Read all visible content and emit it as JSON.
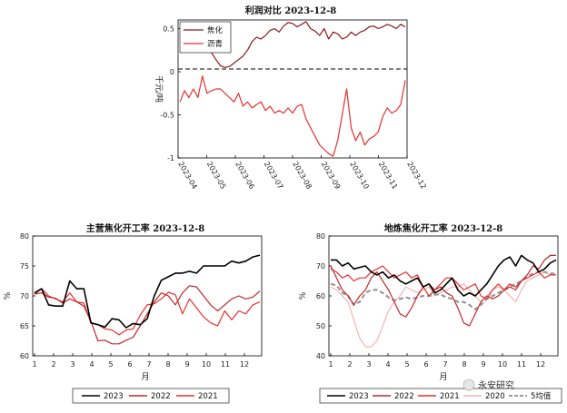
{
  "chart_data": [
    {
      "id": "profit",
      "type": "line",
      "title": "利润对比 2023-12-8",
      "ylabel": "千元/吨",
      "ylim": [
        -1,
        0.6
      ],
      "yticks": [
        "0.5",
        "0",
        "-0.5",
        "-1"
      ],
      "xticks": [
        "2023-04",
        "2023-05",
        "2023-06",
        "2023-07",
        "2023-08",
        "2023-09",
        "2023-10",
        "2023-11",
        "2023-12"
      ],
      "legend_position": "top-left",
      "series": [
        {
          "name": "焦化",
          "color": "#8b1a1a",
          "values": [
            0.4,
            0.55,
            0.42,
            0.5,
            0.38,
            0.45,
            0.3,
            0.22,
            0.14,
            0.07,
            0.05,
            0.06,
            0.1,
            0.14,
            0.18,
            0.25,
            0.35,
            0.4,
            0.38,
            0.42,
            0.48,
            0.5,
            0.46,
            0.53,
            0.57,
            0.56,
            0.52,
            0.55,
            0.58,
            0.5,
            0.47,
            0.42,
            0.5,
            0.38,
            0.46,
            0.44,
            0.38,
            0.4,
            0.46,
            0.42,
            0.46,
            0.48,
            0.52,
            0.53,
            0.5,
            0.52,
            0.55,
            0.53,
            0.5,
            0.55,
            0.52
          ]
        },
        {
          "name": "沥青",
          "color": "#e8302d",
          "values": [
            -0.35,
            -0.22,
            -0.3,
            -0.2,
            -0.3,
            -0.05,
            -0.25,
            -0.22,
            -0.2,
            -0.2,
            -0.25,
            -0.3,
            -0.35,
            -0.25,
            -0.4,
            -0.35,
            -0.42,
            -0.38,
            -0.35,
            -0.45,
            -0.4,
            -0.48,
            -0.45,
            -0.48,
            -0.42,
            -0.48,
            -0.4,
            -0.38,
            -0.55,
            -0.65,
            -0.75,
            -0.85,
            -0.9,
            -0.95,
            -0.98,
            -0.8,
            -0.5,
            -0.2,
            -0.65,
            -0.8,
            -0.7,
            -0.85,
            -0.78,
            -0.75,
            -0.7,
            -0.52,
            -0.42,
            -0.48,
            -0.45,
            -0.38,
            -0.1
          ]
        }
      ]
    },
    {
      "id": "coking",
      "type": "line",
      "title": "主营焦化开工率 2023-12-8",
      "xlabel": "月",
      "ylabel": "%",
      "ylim": [
        60,
        80
      ],
      "yticks": [
        "80",
        "75",
        "70",
        "65",
        "60"
      ],
      "xticks": [
        "1",
        "2",
        "3",
        "4",
        "5",
        "6",
        "7",
        "8",
        "9",
        "10",
        "11",
        "12"
      ],
      "legend_position": "bottom",
      "series": [
        {
          "name": "2023",
          "color": "#000000",
          "dash": "",
          "values": [
            70.5,
            71.2,
            68.5,
            68.3,
            68.3,
            72.5,
            71.2,
            71.2,
            65.5,
            65.2,
            64.8,
            66.2,
            66.0,
            64.7,
            65.4,
            65.2,
            66.2,
            70.0,
            72.6,
            73.2,
            73.8,
            73.8,
            74.1,
            73.8,
            75.0,
            75.0,
            75.0,
            75.0,
            75.8,
            75.5,
            75.8,
            76.5,
            76.8
          ]
        },
        {
          "name": "2022",
          "color": "#c0282b",
          "dash": "",
          "values": [
            70.3,
            70.5,
            69.8,
            69.6,
            68.8,
            69.5,
            69.0,
            68.3,
            65.8,
            62.5,
            62.6,
            62.0,
            62.0,
            62.6,
            63.1,
            65.0,
            67.0,
            69.0,
            70.5,
            70.0,
            68.5,
            70.5,
            71.7,
            71.5,
            70.0,
            68.5,
            67.5,
            68.5,
            69.5,
            70.0,
            69.5,
            69.8,
            70.8
          ]
        },
        {
          "name": "2021",
          "color": "#e8302d",
          "dash": "",
          "values": [
            70.3,
            71.2,
            70.0,
            69.5,
            69.0,
            70.5,
            69.0,
            68.8,
            65.5,
            65.2,
            64.5,
            64.3,
            63.5,
            64.3,
            64.5,
            66.8,
            68.5,
            68.7,
            69.5,
            70.6,
            70.2,
            67.0,
            69.5,
            68.0,
            66.5,
            65.5,
            65.0,
            67.5,
            66.0,
            67.5,
            67.0,
            68.5,
            69.0
          ]
        }
      ]
    },
    {
      "id": "local",
      "type": "line",
      "title": "地炼焦化开工率 2023-12-8",
      "xlabel": "月",
      "ylabel": "%",
      "ylim": [
        40,
        80
      ],
      "yticks": [
        "80",
        "70",
        "60",
        "50",
        "40"
      ],
      "xticks": [
        "1",
        "2",
        "3",
        "4",
        "5",
        "6",
        "7",
        "8",
        "9",
        "10",
        "11",
        "12"
      ],
      "legend_position": "bottom",
      "series": [
        {
          "name": "2023",
          "color": "#000000",
          "dash": "",
          "values": [
            72,
            72,
            70,
            71,
            69,
            69.5,
            70,
            68,
            67,
            68,
            66,
            67,
            65,
            64,
            65,
            66,
            63,
            64,
            61,
            62,
            64,
            66,
            62,
            60,
            61,
            60,
            62,
            64,
            67,
            70,
            72,
            73,
            70,
            73.5,
            72,
            71,
            68,
            69,
            71,
            72
          ]
        },
        {
          "name": "2022",
          "color": "#c0282b",
          "dash": "",
          "values": [
            70,
            66,
            62,
            60,
            57,
            60,
            62,
            66,
            68,
            65,
            62,
            58,
            54,
            53,
            56,
            60,
            63,
            64,
            62,
            63,
            61,
            60,
            56,
            51,
            50,
            54,
            58,
            60,
            59,
            60,
            62,
            63,
            62,
            65,
            67,
            70,
            69,
            72,
            73.5,
            73.5
          ]
        },
        {
          "name": "2021",
          "color": "#e8302d",
          "dash": "",
          "values": [
            69,
            68,
            66,
            67,
            65,
            66,
            66,
            68,
            69,
            70,
            68,
            66,
            67,
            68,
            66,
            67,
            63,
            60,
            62,
            64,
            66,
            66,
            64,
            62,
            63,
            64,
            60,
            59,
            62,
            64,
            62,
            64,
            63,
            65,
            66,
            67,
            68,
            66,
            67,
            67
          ]
        },
        {
          "name": "2020",
          "color": "#f4b3b3",
          "dash": "",
          "values": [
            63,
            62,
            60,
            58,
            52,
            46,
            43,
            43,
            45,
            50,
            55,
            58,
            60,
            63,
            62,
            61,
            62,
            63,
            60,
            61,
            62,
            63,
            63,
            64,
            62,
            60,
            58,
            60,
            62,
            63,
            62,
            60,
            58,
            62,
            65,
            66,
            67,
            68,
            67,
            67
          ]
        },
        {
          "name": "5均值",
          "color": "#999999",
          "dash": "5,3",
          "values": [
            64,
            63.5,
            61,
            60,
            57,
            58,
            61,
            62,
            62,
            61,
            59.5,
            58.5,
            59,
            59.5,
            59,
            59.5,
            60,
            60,
            60.5,
            60.5,
            59.5,
            59,
            58,
            58,
            57,
            55.5,
            57,
            59,
            60,
            61,
            62,
            63,
            64,
            65,
            66.5,
            67.5,
            68,
            68,
            67.5,
            67.5
          ]
        }
      ]
    }
  ],
  "watermark": "永安研究"
}
